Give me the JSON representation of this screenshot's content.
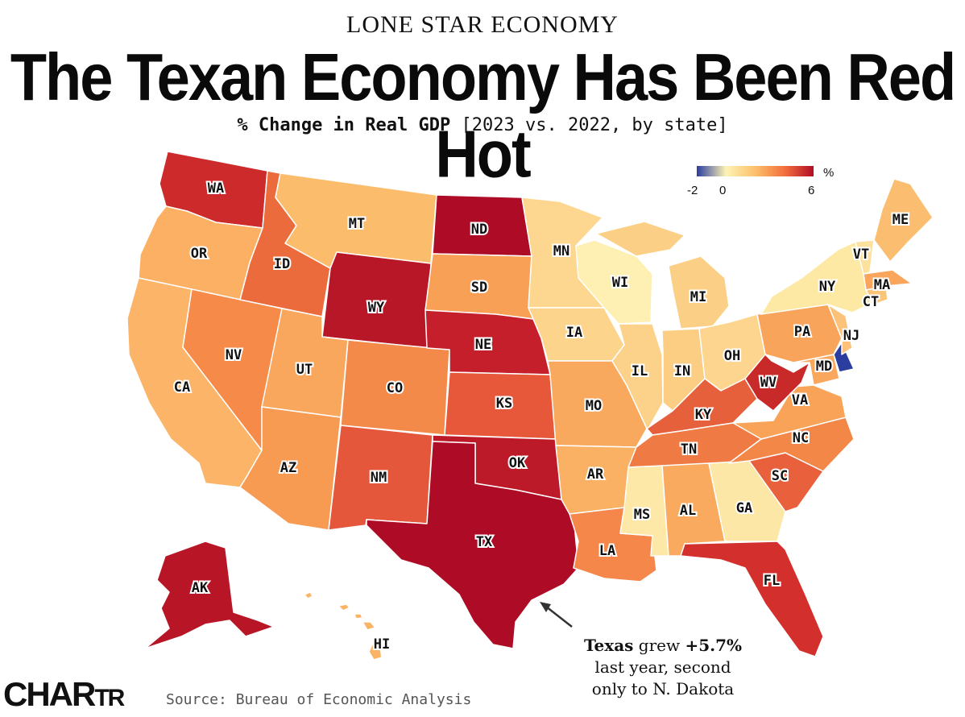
{
  "header": {
    "kicker": "LONE STAR ECONOMY",
    "title": "The Texan Economy Has Been Red Hot",
    "subtitle_bold": "% Change in Real GDP",
    "subtitle_rest": " [2023 vs. 2022, by state]"
  },
  "legend": {
    "unit": "%",
    "ticks": [
      "-2",
      "0",
      "6"
    ],
    "range": [
      -2,
      6
    ],
    "colors": [
      "#2c3da0",
      "#fdf3b4",
      "#fcc06c",
      "#f3703d",
      "#b20d26"
    ]
  },
  "map_data": {
    "metric": "% Change in Real GDP",
    "states": [
      {
        "abbr": "WA",
        "value": 4.6,
        "color": "#cd2a2c"
      },
      {
        "abbr": "OR",
        "value": 1.7,
        "color": "#fbb064"
      },
      {
        "abbr": "CA",
        "value": 1.6,
        "color": "#fbb468"
      },
      {
        "abbr": "NV",
        "value": 2.6,
        "color": "#f58a49"
      },
      {
        "abbr": "ID",
        "value": 3.4,
        "color": "#ec6b3c"
      },
      {
        "abbr": "MT",
        "value": 1.5,
        "color": "#fbbc6c"
      },
      {
        "abbr": "WY",
        "value": 5.3,
        "color": "#b71727"
      },
      {
        "abbr": "UT",
        "value": 2.0,
        "color": "#f9a75d"
      },
      {
        "abbr": "CO",
        "value": 2.7,
        "color": "#f48a4a"
      },
      {
        "abbr": "AZ",
        "value": 2.3,
        "color": "#f79a52"
      },
      {
        "abbr": "NM",
        "value": 3.7,
        "color": "#e4573a"
      },
      {
        "abbr": "ND",
        "value": 5.8,
        "color": "#ae0c26"
      },
      {
        "abbr": "SD",
        "value": 2.2,
        "color": "#f8a056"
      },
      {
        "abbr": "NE",
        "value": 4.9,
        "color": "#c51f2c"
      },
      {
        "abbr": "KS",
        "value": 3.6,
        "color": "#e65839"
      },
      {
        "abbr": "OK",
        "value": 5.1,
        "color": "#bd1a29"
      },
      {
        "abbr": "TX",
        "value": 5.7,
        "color": "#ad0b26"
      },
      {
        "abbr": "MN",
        "value": 1.0,
        "color": "#fdd690"
      },
      {
        "abbr": "IA",
        "value": 1.0,
        "color": "#fdd48c"
      },
      {
        "abbr": "MO",
        "value": 1.9,
        "color": "#f9a95e"
      },
      {
        "abbr": "AR",
        "value": 1.7,
        "color": "#fab163"
      },
      {
        "abbr": "LA",
        "value": 2.6,
        "color": "#f5874a"
      },
      {
        "abbr": "WI",
        "value": 0.5,
        "color": "#feefb2"
      },
      {
        "abbr": "IL",
        "value": 1.0,
        "color": "#fcd18a"
      },
      {
        "abbr": "MI",
        "value": 1.1,
        "color": "#fccf86"
      },
      {
        "abbr": "IN",
        "value": 1.1,
        "color": "#fcce84"
      },
      {
        "abbr": "OH",
        "value": 1.0,
        "color": "#fdd58e"
      },
      {
        "abbr": "KY",
        "value": 3.5,
        "color": "#e7603c"
      },
      {
        "abbr": "TN",
        "value": 3.0,
        "color": "#f07a43"
      },
      {
        "abbr": "MS",
        "value": 0.6,
        "color": "#fde8a8"
      },
      {
        "abbr": "AL",
        "value": 1.9,
        "color": "#f9aa5e"
      },
      {
        "abbr": "GA",
        "value": 0.6,
        "color": "#fde7a6"
      },
      {
        "abbr": "FL",
        "value": 4.6,
        "color": "#d32f2c"
      },
      {
        "abbr": "SC",
        "value": 3.5,
        "color": "#e9603c"
      },
      {
        "abbr": "NC",
        "value": 2.8,
        "color": "#f38747"
      },
      {
        "abbr": "VA",
        "value": 2.3,
        "color": "#f8a358"
      },
      {
        "abbr": "WV",
        "value": 4.8,
        "color": "#c82a2a"
      },
      {
        "abbr": "MD",
        "value": 1.9,
        "color": "#f9a75c"
      },
      {
        "abbr": "DE",
        "value": -2.0,
        "color": "#2c3da0"
      },
      {
        "abbr": "PA",
        "value": 2.0,
        "color": "#f9a45b"
      },
      {
        "abbr": "NJ",
        "value": 1.3,
        "color": "#fcc27a"
      },
      {
        "abbr": "NY",
        "value": 0.7,
        "color": "#fde9a3"
      },
      {
        "abbr": "CT",
        "value": 1.3,
        "color": "#fcc478"
      },
      {
        "abbr": "MA",
        "value": 2.0,
        "color": "#f9a65c"
      },
      {
        "abbr": "VT",
        "value": 0.8,
        "color": "#fde19c"
      },
      {
        "abbr": "ME",
        "value": 1.5,
        "color": "#fbbd70"
      },
      {
        "abbr": "AK",
        "value": 5.4,
        "color": "#b81626"
      },
      {
        "abbr": "HI",
        "value": 1.8,
        "color": "#fbb466"
      }
    ]
  },
  "annotation": {
    "line1_bold": "Texas",
    "line1_mid": " grew ",
    "line1_value": "+5.7%",
    "line2": "last year, second",
    "line3": "only to N. Dakota"
  },
  "footer": {
    "brand_big": "CHAR",
    "brand_small": "TR",
    "source": "Source: Bureau of Economic Analysis"
  }
}
